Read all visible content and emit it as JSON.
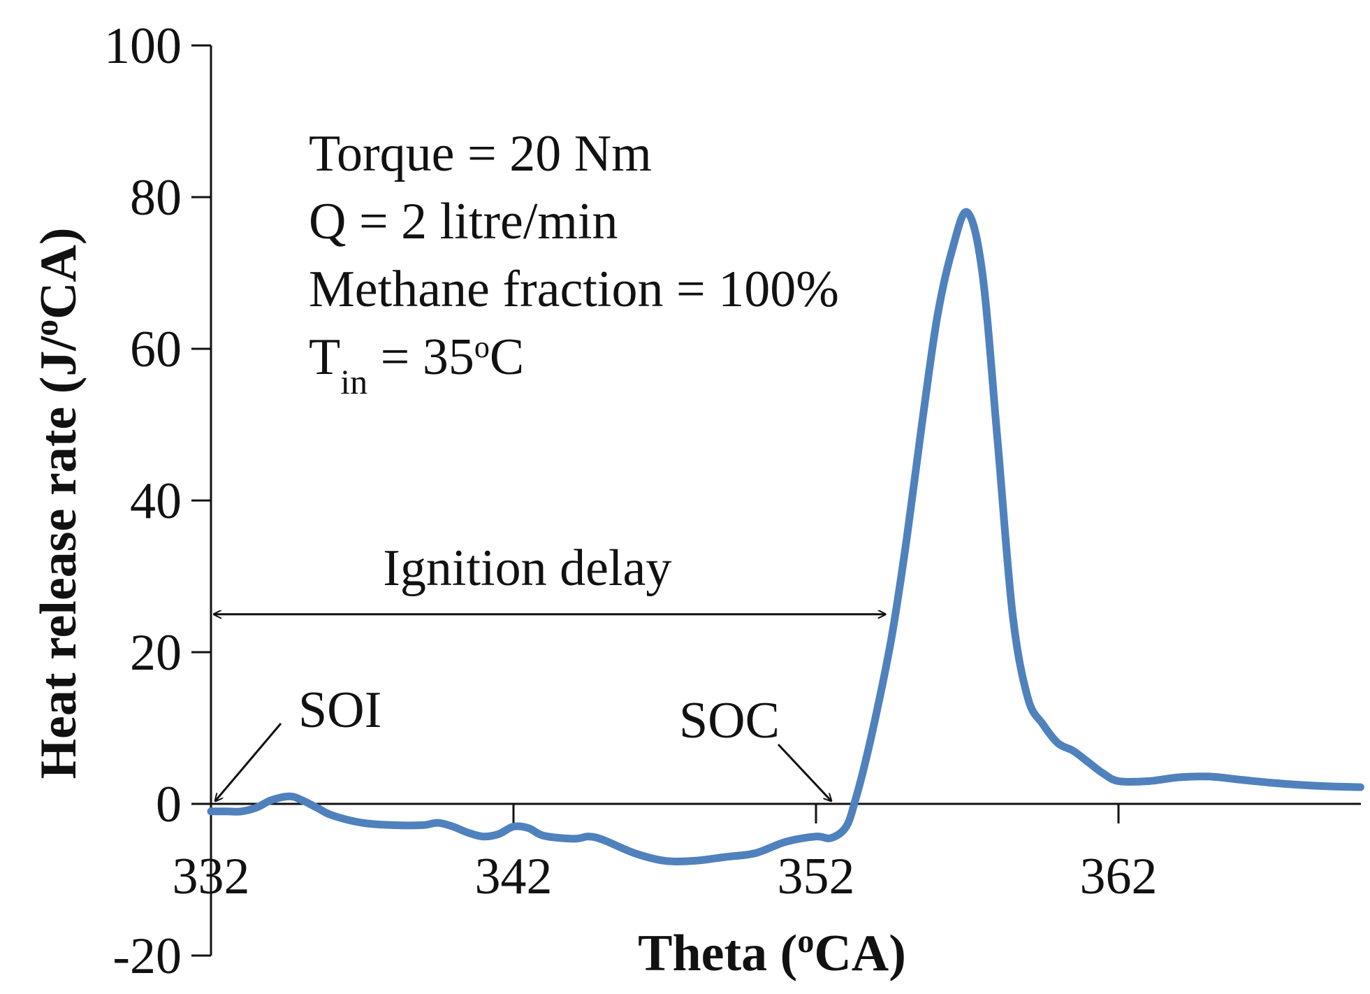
{
  "chart_data": {
    "type": "line",
    "title": "",
    "xlabel": {
      "main": "Theta (",
      "sup": "o",
      "tail": "CA)"
    },
    "ylabel": {
      "main": "Heat release rate (J/",
      "sup": "o",
      "tail": "CA)"
    },
    "xlim": [
      332,
      370
    ],
    "ylim": [
      -20,
      100
    ],
    "x_ticks": [
      332,
      342,
      352,
      362
    ],
    "y_ticks": [
      -20,
      0,
      20,
      40,
      60,
      80,
      100
    ],
    "grid": false,
    "series": [
      {
        "name": "Heat release rate",
        "color": "#4F81BD",
        "x": [
          332,
          332.5,
          333,
          333.5,
          334,
          334.6,
          335,
          335.5,
          336,
          337,
          338,
          339,
          339.5,
          340,
          340.5,
          341,
          341.5,
          342,
          342.5,
          343,
          344,
          344.5,
          345,
          346,
          347,
          348,
          349,
          350,
          351,
          352,
          352.5,
          353,
          353.3,
          353.6,
          354,
          354.5,
          355,
          355.5,
          356,
          356.5,
          357,
          357.5,
          358,
          358.5,
          359,
          359.5,
          360,
          360.5,
          361,
          361.5,
          362,
          363,
          364,
          365,
          366,
          367,
          368,
          369,
          370
        ],
        "values": [
          -1,
          -1,
          -1,
          -0.5,
          0.5,
          1,
          0.5,
          -0.5,
          -1.5,
          -2.5,
          -2.8,
          -2.8,
          -2.5,
          -3,
          -3.8,
          -4.3,
          -4,
          -3,
          -3.2,
          -4.2,
          -4.6,
          -4.3,
          -4.8,
          -6.5,
          -7.5,
          -7.5,
          -7,
          -6.5,
          -5,
          -4.3,
          -4.5,
          -3,
          0.5,
          5,
          12,
          22,
          35,
          50,
          64,
          73,
          78,
          70,
          48,
          25,
          14,
          10.5,
          8,
          7,
          5.5,
          4,
          3,
          3,
          3.5,
          3.6,
          3.2,
          2.8,
          2.5,
          2.3,
          2.2
        ]
      }
    ],
    "annotations": {
      "conditions": {
        "torque": "Torque = 20 Nm",
        "flow": "Q = 2 litre/min",
        "methane": "Methane fraction = 100%",
        "tin_main": "T",
        "tin_sub": "in",
        "tin_value": " = 35",
        "tin_sup": "o",
        "tin_unit": "C"
      },
      "ignition_delay": {
        "label": "Ignition delay",
        "from_x": 332,
        "to_x": 354.3,
        "y": 25
      },
      "soi": {
        "label": "SOI",
        "x": 332,
        "y": 0
      },
      "soc": {
        "label": "SOC",
        "x": 352.6,
        "y": 0
      }
    }
  }
}
